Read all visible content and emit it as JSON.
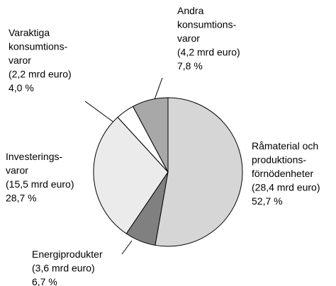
{
  "chart_data": {
    "type": "pie",
    "categories": [
      [
        "Råmaterial och",
        "produktions-",
        "förnödenheter"
      ],
      [
        "Energiprodukter"
      ],
      [
        "Investerings-",
        "varor"
      ],
      [
        "Varaktiga",
        "konsumtions-",
        "varor"
      ],
      [
        "Andra",
        "konsumtions-",
        "varor"
      ]
    ],
    "values": [
      52.7,
      6.7,
      28.7,
      4.0,
      7.8
    ],
    "value_labels": [
      "52,7 %",
      "6,7 %",
      "28,7 %",
      "4,0 %",
      "7,8 %"
    ],
    "amounts": [
      28.4,
      3.6,
      15.5,
      2.2,
      4.2
    ],
    "amount_labels": [
      "(28,4 mrd euro)",
      "(3,6 mrd euro)",
      "(15,5 mrd euro)",
      "(2,2 mrd euro)",
      "(4,2 mrd euro)"
    ],
    "colors": [
      "#d6d6d6",
      "#808080",
      "#ebebeb",
      "#ffffff",
      "#a8a8a8"
    ]
  }
}
